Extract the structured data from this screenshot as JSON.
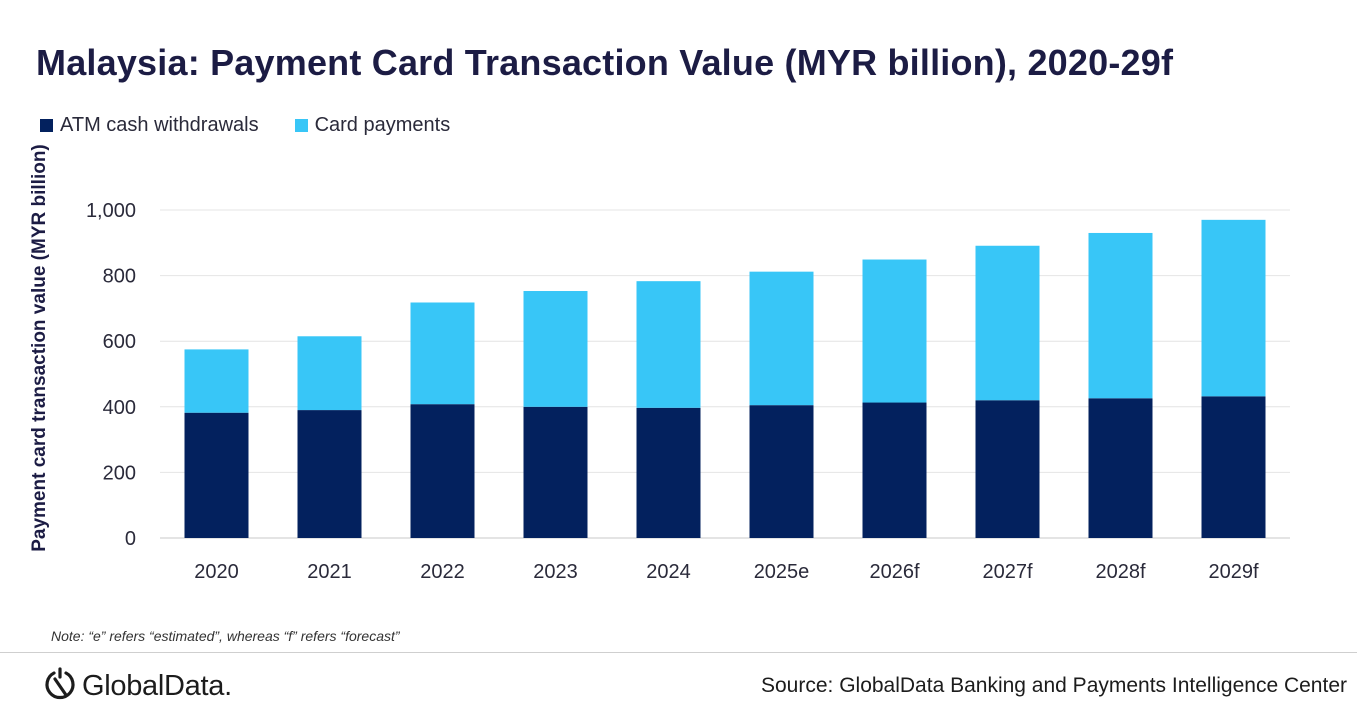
{
  "title": "Malaysia: Payment Card Transaction Value (MYR billion), 2020-29f",
  "legend": {
    "items": [
      {
        "label": "ATM cash withdrawals",
        "color": "#03215e"
      },
      {
        "label": "Card payments",
        "color": "#38c6f7"
      }
    ]
  },
  "note": "Note: “e” refers “estimated”, whereas “f” refers “forecast”",
  "footer": {
    "logo_text": "GlobalData.",
    "source": "Source: GlobalData Banking and Payments Intelligence Center"
  },
  "chart_data": {
    "type": "bar",
    "stacked": true,
    "title": "Malaysia: Payment Card Transaction Value (MYR billion), 2020-29f",
    "xlabel": "",
    "ylabel": "Payment card transaction value (MYR billion)",
    "ylim": [
      0,
      1000
    ],
    "yticks": [
      0,
      200,
      400,
      600,
      800,
      1000
    ],
    "ytick_labels": [
      "0",
      "200",
      "400",
      "600",
      "800",
      "1,000"
    ],
    "grid": true,
    "legend_position": "top-left",
    "categories": [
      "2020",
      "2021",
      "2022",
      "2023",
      "2024",
      "2025e",
      "2026f",
      "2027f",
      "2028f",
      "2029f"
    ],
    "series": [
      {
        "name": "ATM cash withdrawals",
        "color": "#03215e",
        "values": [
          382,
          390,
          408,
          400,
          397,
          405,
          413,
          420,
          426,
          432
        ]
      },
      {
        "name": "Card payments",
        "color": "#38c6f7",
        "values": [
          193,
          225,
          310,
          353,
          386,
          407,
          436,
          471,
          504,
          538
        ]
      }
    ]
  }
}
